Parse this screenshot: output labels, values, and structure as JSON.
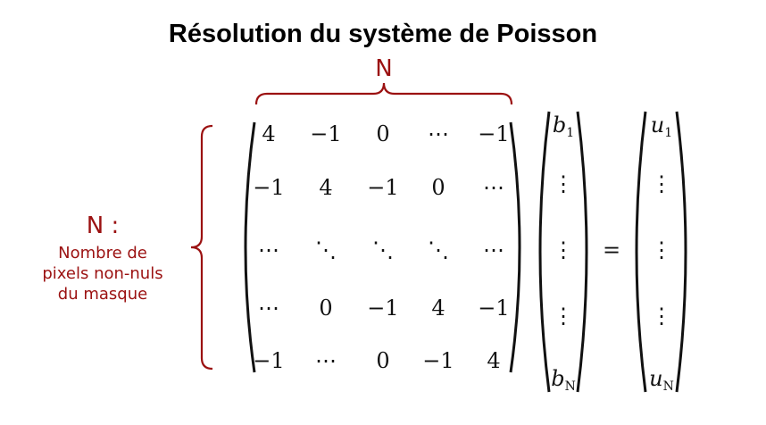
{
  "title": "Résolution du système de Poisson",
  "brace_top_label": "N",
  "side_label": {
    "symbol": "N :",
    "description": [
      "Nombre de",
      "pixels non-nuls",
      "du masque"
    ]
  },
  "matrix": [
    [
      "4",
      "−1",
      "0",
      "⋯",
      "−1"
    ],
    [
      "−1",
      "4",
      "−1",
      "0",
      "⋯"
    ],
    [
      "⋯",
      "⋱",
      "⋱",
      "⋱",
      "⋯"
    ],
    [
      "⋯",
      "0",
      "−1",
      "4",
      "−1"
    ],
    [
      "−1",
      "⋯",
      "0",
      "−1",
      "4"
    ]
  ],
  "vector_b": {
    "first": "b",
    "first_sub": "1",
    "dots": "⋮",
    "last": "b",
    "last_sub": "N"
  },
  "equals": "=",
  "vector_u": {
    "first": "u",
    "first_sub": "1",
    "dots": "⋮",
    "last": "u",
    "last_sub": "N"
  },
  "colors": {
    "accent": "#9b1111",
    "text": "#111111"
  }
}
